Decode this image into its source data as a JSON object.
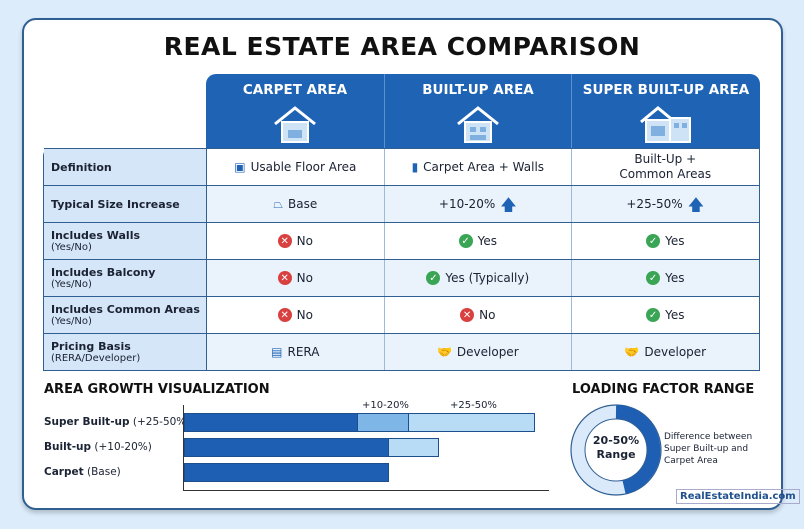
{
  "title": "REAL ESTATE AREA COMPARISON",
  "columns": [
    "CARPET AREA",
    "BUILT-UP AREA",
    "SUPER BUILT-UP AREA"
  ],
  "rows": [
    {
      "label": "Definition",
      "sub": "",
      "cells": [
        {
          "text": "Usable Floor Area",
          "icon": "room-icon"
        },
        {
          "text": "Carpet Area + Walls",
          "icon": "ruler-icon"
        },
        {
          "text": "Built-Up + Common Areas",
          "icon": ""
        }
      ]
    },
    {
      "label": "Typical Size Increase",
      "sub": "",
      "cells": [
        {
          "text": "Base",
          "icon": "base-icon"
        },
        {
          "text": "+10-20%",
          "icon": "arrow-up-icon"
        },
        {
          "text": "+25-50%",
          "icon": "arrow-up-icon"
        }
      ]
    },
    {
      "label": "Includes Walls",
      "sub": "(Yes/No)",
      "cells": [
        {
          "text": "No",
          "icon": "x-icon"
        },
        {
          "text": "Yes",
          "icon": "check-icon"
        },
        {
          "text": "Yes",
          "icon": "check-icon"
        }
      ]
    },
    {
      "label": "Includes Balcony",
      "sub": "(Yes/No)",
      "cells": [
        {
          "text": "No",
          "icon": "x-icon"
        },
        {
          "text": "Yes (Typically)",
          "icon": "check-icon"
        },
        {
          "text": "Yes",
          "icon": "check-icon"
        }
      ]
    },
    {
      "label": "Includes Common Areas",
      "sub": "(Yes/No)",
      "cells": [
        {
          "text": "No",
          "icon": "x-icon"
        },
        {
          "text": "No",
          "icon": "x-icon"
        },
        {
          "text": "Yes",
          "icon": "check-icon"
        }
      ]
    },
    {
      "label": "Pricing Basis",
      "sub": "(RERA/Developer)",
      "cells": [
        {
          "text": "RERA",
          "icon": "document-icon"
        },
        {
          "text": "Developer",
          "icon": "handshake-icon"
        },
        {
          "text": "Developer",
          "icon": "handshake-icon"
        }
      ]
    }
  ],
  "growth": {
    "title": "AREA GROWTH VISUALIZATION",
    "labels": [
      {
        "name": "Super Built-up",
        "note": "(+25-50%)"
      },
      {
        "name": "Built-up",
        "note": "(+10-20%)"
      },
      {
        "name": "Carpet",
        "note": "(Base)"
      }
    ],
    "tick1": "+10-20%",
    "tick2": "+25-50%"
  },
  "loading": {
    "title": "LOADING FACTOR RANGE",
    "center1": "20-50%",
    "center2": "Range",
    "desc": "Difference between Super Built-up and Carpet Area",
    "range_percent": [
      20,
      50
    ]
  },
  "logo": "RealEstateIndia.com",
  "colors": {
    "primary": "#1f63b5",
    "light": "#b8dcf6",
    "no": "#d94040",
    "yes": "#3aa655"
  }
}
